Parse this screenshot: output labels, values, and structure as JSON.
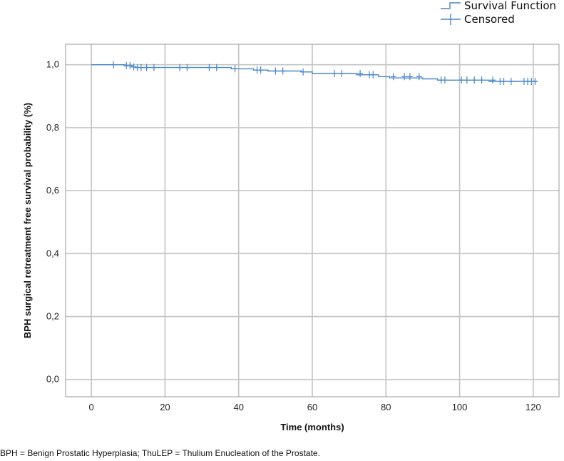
{
  "chart_data": {
    "type": "line",
    "title": "",
    "xlabel": "Time (months)",
    "ylabel": "BPH surgical retreatment free survival probability (%)",
    "xlim": [
      -7,
      127
    ],
    "ylim": [
      -0.055,
      1.065
    ],
    "x_ticks": [
      0,
      20,
      40,
      60,
      80,
      100,
      120
    ],
    "x_tick_labels": [
      "0",
      "20",
      "40",
      "60",
      "80",
      "100",
      "120"
    ],
    "y_ticks": [
      0.0,
      0.2,
      0.4,
      0.6,
      0.8,
      1.0
    ],
    "y_tick_labels": [
      "0,0",
      "0,2",
      "0,4",
      "0,6",
      "0,8",
      "1,0"
    ],
    "grid": true,
    "legend_position": "top-right",
    "line_color": "#4a86c8",
    "grid_color": "#c4c4c4",
    "series": [
      {
        "name": "Survival Function",
        "style": "step",
        "points": [
          [
            0,
            1.0
          ],
          [
            9,
            1.0
          ],
          [
            9,
            0.997
          ],
          [
            11,
            0.997
          ],
          [
            11,
            0.993
          ],
          [
            12,
            0.993
          ],
          [
            12,
            0.991
          ],
          [
            38,
            0.991
          ],
          [
            38,
            0.987
          ],
          [
            44,
            0.987
          ],
          [
            44,
            0.983
          ],
          [
            48,
            0.983
          ],
          [
            48,
            0.98
          ],
          [
            57,
            0.98
          ],
          [
            57,
            0.977
          ],
          [
            60,
            0.977
          ],
          [
            60,
            0.972
          ],
          [
            72,
            0.972
          ],
          [
            72,
            0.968
          ],
          [
            78,
            0.968
          ],
          [
            78,
            0.962
          ],
          [
            81,
            0.962
          ],
          [
            81,
            0.958
          ],
          [
            90,
            0.958
          ],
          [
            90,
            0.955
          ],
          [
            94,
            0.955
          ],
          [
            94,
            0.951
          ],
          [
            108,
            0.951
          ],
          [
            108,
            0.947
          ],
          [
            121,
            0.947
          ]
        ]
      },
      {
        "name": "Censored",
        "style": "markers",
        "points": [
          [
            6,
            1.0
          ],
          [
            9.5,
            0.997
          ],
          [
            10.5,
            0.997
          ],
          [
            11.5,
            0.993
          ],
          [
            12.5,
            0.991
          ],
          [
            13.5,
            0.991
          ],
          [
            15,
            0.991
          ],
          [
            17,
            0.991
          ],
          [
            24,
            0.991
          ],
          [
            26,
            0.991
          ],
          [
            32,
            0.991
          ],
          [
            34,
            0.991
          ],
          [
            39,
            0.987
          ],
          [
            45,
            0.983
          ],
          [
            46,
            0.983
          ],
          [
            50,
            0.98
          ],
          [
            52,
            0.98
          ],
          [
            57.5,
            0.977
          ],
          [
            66,
            0.972
          ],
          [
            68,
            0.972
          ],
          [
            73,
            0.972
          ],
          [
            75.5,
            0.968
          ],
          [
            76.5,
            0.968
          ],
          [
            82,
            0.962
          ],
          [
            85,
            0.962
          ],
          [
            86.5,
            0.962
          ],
          [
            89,
            0.962
          ],
          [
            95,
            0.951
          ],
          [
            96,
            0.951
          ],
          [
            100.5,
            0.951
          ],
          [
            102,
            0.951
          ],
          [
            104,
            0.951
          ],
          [
            106,
            0.951
          ],
          [
            109,
            0.951
          ],
          [
            111,
            0.947
          ],
          [
            112,
            0.947
          ],
          [
            114,
            0.947
          ],
          [
            117.5,
            0.947
          ],
          [
            118.5,
            0.947
          ],
          [
            119.5,
            0.947
          ],
          [
            120.5,
            0.947
          ]
        ]
      }
    ]
  },
  "footnote": "BPH = Benign Prostatic Hyperplasia; ThuLEP = Thulium Enucleation of the Prostate."
}
